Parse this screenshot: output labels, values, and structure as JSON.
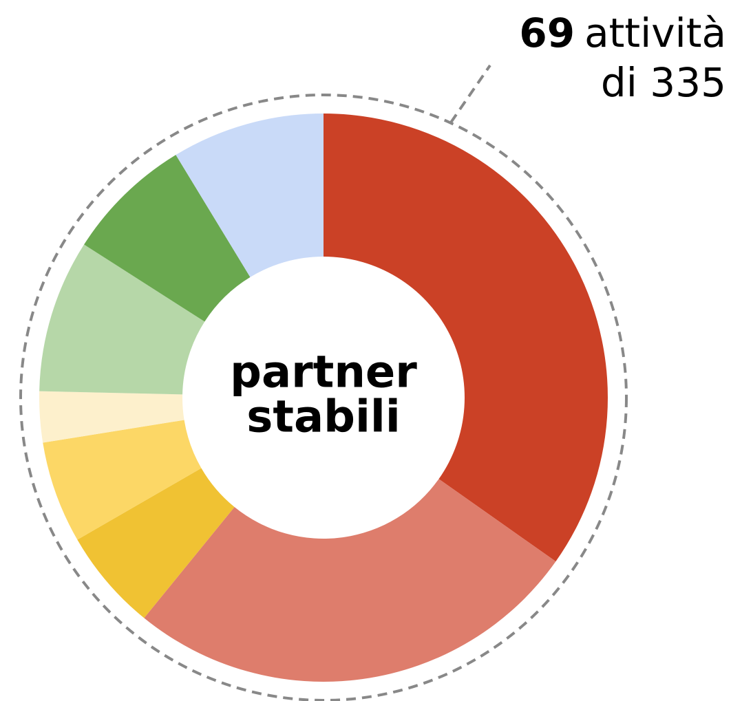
{
  "chart_data": {
    "type": "pie",
    "values": [
      24,
      18,
      4,
      4,
      2,
      6,
      5,
      6
    ],
    "colors": [
      "#cb4126",
      "#de7d6c",
      "#f0c233",
      "#fcd766",
      "#fdf0cc",
      "#b6d7a8",
      "#6aa84f",
      "#c9daf8"
    ],
    "center_label": [
      "partner",
      "stabili"
    ],
    "annotation": {
      "count": "69",
      "unit": "attività",
      "total": "di 335"
    }
  }
}
